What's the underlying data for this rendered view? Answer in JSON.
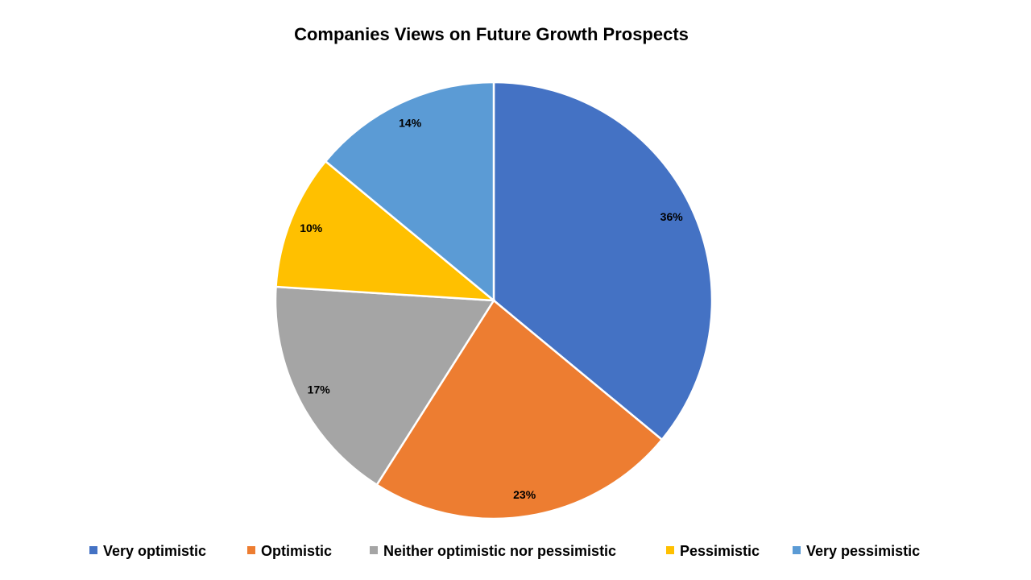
{
  "chart_data": {
    "type": "pie",
    "title": "Companies Views on Future Growth Prospects",
    "categories": [
      "Very optimistic",
      "Optimistic",
      "Neither optimistic nor pessimistic",
      "Pessimistic",
      "Very pessimistic"
    ],
    "values": [
      36,
      23,
      17,
      10,
      14
    ],
    "labels": [
      "36%",
      "23%",
      "17%",
      "10%",
      "14%"
    ],
    "colors": [
      "#4472C4",
      "#ED7D31",
      "#A5A5A5",
      "#FFC000",
      "#5B9BD5"
    ],
    "start_angle": "12 o'clock, clockwise",
    "legend_position": "bottom"
  }
}
